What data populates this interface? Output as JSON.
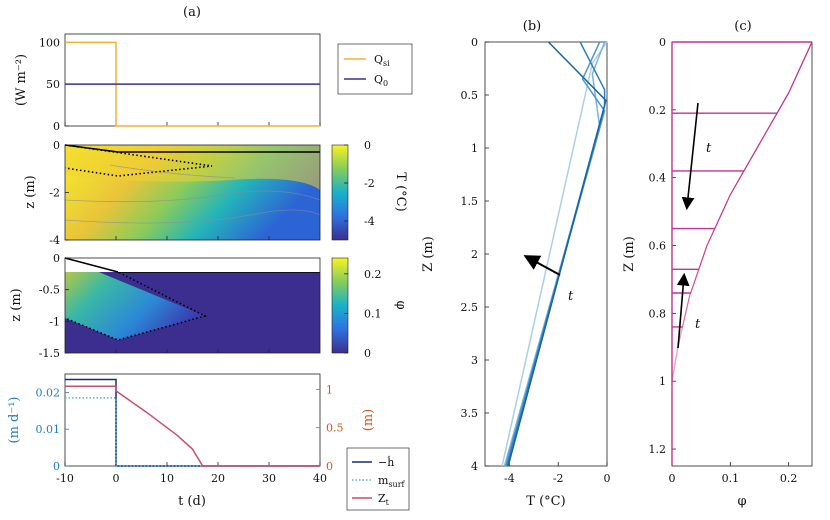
{
  "chart_data": [
    {
      "id": "a1",
      "type": "line",
      "title": "(a)",
      "xlabel": "",
      "ylabel": "(W m⁻²)",
      "xlim": [
        -10,
        40
      ],
      "ylim": [
        0,
        110
      ],
      "xticks": [
        "-10",
        "0",
        "10",
        "20",
        "30",
        "40"
      ],
      "yticks": [
        "0",
        "50",
        "100"
      ],
      "series": [
        {
          "name": "Q_si",
          "label_main": "Q",
          "label_sub": "si",
          "color": "#f2b134",
          "x": [
            -10,
            0,
            0,
            40
          ],
          "y": [
            100,
            100,
            0,
            0
          ]
        },
        {
          "name": "Q_0",
          "label_main": "Q",
          "label_sub": "0",
          "color": "#3a2f9a",
          "x": [
            -10,
            40
          ],
          "y": [
            50,
            50
          ]
        }
      ]
    },
    {
      "id": "a2",
      "type": "heatmap",
      "xlim": [
        -10,
        40
      ],
      "ylim": [
        -4,
        0
      ],
      "ylabel": "z (m)",
      "yticks": [
        "0",
        "-2",
        "-4"
      ],
      "colorbar": {
        "label": "T (°C)",
        "ticks": [
          "0",
          "-2",
          "-4"
        ],
        "range": [
          -5,
          0
        ]
      }
    },
    {
      "id": "a3",
      "type": "heatmap",
      "xlim": [
        -10,
        40
      ],
      "ylim": [
        -1.5,
        0
      ],
      "ylabel": "z (m)",
      "yticks": [
        "0",
        "-0.5",
        "-1",
        "-1.5"
      ],
      "colorbar": {
        "label": "φ",
        "ticks": [
          "0.2",
          "0.1",
          "0"
        ],
        "range": [
          0,
          0.24
        ]
      }
    },
    {
      "id": "a4",
      "type": "line",
      "xlabel": "t (d)",
      "xlim": [
        -10,
        40
      ],
      "xticks": [
        "-10",
        "0",
        "10",
        "20",
        "30",
        "40"
      ],
      "ylabel_left": "(m d⁻¹)",
      "ylabel_right": "(m)",
      "ylim_left": [
        0,
        0.025
      ],
      "ylim_right": [
        0,
        1.2
      ],
      "yticks_left": [
        "0",
        "0.01",
        "0.02"
      ],
      "yticks_right": [
        "0",
        "0.5",
        "1"
      ],
      "left_color": "#1f7fc4",
      "right_color": "#d9541a",
      "series": [
        {
          "name": "-h_dot",
          "legend": "−ḣ",
          "axis": "left",
          "color": "#1b2a7a",
          "style": "solid",
          "x": [
            -10,
            0,
            0,
            40
          ],
          "y": [
            0.0235,
            0.0235,
            0,
            0
          ]
        },
        {
          "name": "m_surf",
          "legend": "m",
          "legend_sub": "surf",
          "axis": "left",
          "color": "#4fb3e6",
          "style": "dotted",
          "x": [
            -10,
            0,
            0,
            40
          ],
          "y": [
            0.0185,
            0.0185,
            0,
            0
          ]
        },
        {
          "name": "Z_t",
          "legend": "Z",
          "legend_sub": "t",
          "axis": "right",
          "color": "#c8506c",
          "style": "solid",
          "x": [
            -10,
            0,
            0,
            3,
            6,
            9,
            12,
            15,
            17,
            40
          ],
          "y": [
            1.04,
            1.04,
            0.98,
            0.84,
            0.7,
            0.55,
            0.4,
            0.22,
            0,
            0
          ]
        }
      ]
    },
    {
      "id": "b",
      "type": "line",
      "title": "(b)",
      "xlabel": "T (°C)",
      "ylabel": "Z (m)",
      "xlim": [
        -5,
        0
      ],
      "ylim": [
        4,
        0
      ],
      "xticks": [
        "-4",
        "-2",
        "0"
      ],
      "yticks": [
        "0",
        "0.5",
        "1",
        "1.5",
        "2",
        "2.5",
        "3",
        "3.5",
        "4"
      ],
      "annotation": "t",
      "series": [
        {
          "name": "p1",
          "color": "#abcfe8",
          "x": [
            0,
            -0.6,
            -4.3
          ],
          "y": [
            0,
            0.2,
            4
          ]
        },
        {
          "name": "p2",
          "color": "#7bb3dc",
          "x": [
            -0.1,
            -0.6,
            -0.3,
            -4.2
          ],
          "y": [
            0,
            0.3,
            0.8,
            4
          ]
        },
        {
          "name": "p3",
          "color": "#4f97cf",
          "x": [
            -0.3,
            -1.0,
            -0.1,
            -4.15
          ],
          "y": [
            0,
            0.35,
            0.65,
            4
          ]
        },
        {
          "name": "p4",
          "color": "#2f7fbf",
          "x": [
            -1.1,
            -0.1,
            -0.1,
            -4.1
          ],
          "y": [
            0,
            0.45,
            0.6,
            4
          ]
        },
        {
          "name": "p5",
          "color": "#1565a8",
          "x": [
            -2.4,
            -0.05,
            -0.1,
            -4.05
          ],
          "y": [
            0,
            0.55,
            0.6,
            4
          ]
        }
      ]
    },
    {
      "id": "c",
      "type": "line",
      "title": "(c)",
      "xlabel": "φ",
      "ylabel": "Z (m)",
      "xlim": [
        0,
        0.24
      ],
      "ylim": [
        1.25,
        0
      ],
      "xticks": [
        "0",
        "0.1",
        "0.2"
      ],
      "yticks": [
        "0",
        "0.2",
        "0.4",
        "0.6",
        "0.8",
        "1",
        "1.2"
      ],
      "annotation_1": "t",
      "annotation_2": "t",
      "color": "#c2338d",
      "envelope": {
        "x": [
          0.24,
          0.2,
          0.15,
          0.1,
          0.06,
          0.03,
          0.01,
          0
        ],
        "y": [
          0,
          0.15,
          0.3,
          0.45,
          0.6,
          0.75,
          0.9,
          1.0
        ]
      },
      "fronts": [
        0.21,
        0.38,
        0.55,
        0.67,
        0.74,
        0.84
      ]
    }
  ]
}
